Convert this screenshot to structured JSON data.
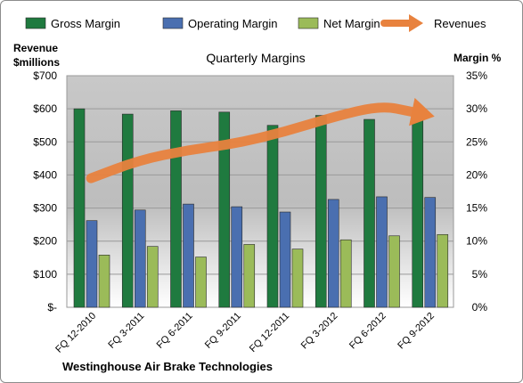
{
  "chart_data": {
    "type": "bar",
    "title": "Quarterly Margins",
    "footer": "Westinghouse Air Brake Technologies",
    "categories": [
      "FQ 12-2010",
      "FQ 3-2011",
      "FQ 6-2011",
      "FQ 9-2011",
      "FQ 12-2011",
      "FQ 3-2012",
      "FQ 6-2012",
      "FQ 9-2012"
    ],
    "left_axis": {
      "label_line1": "Revenue",
      "label_line2": "$millions",
      "ticks": [
        "$-",
        "$100",
        "$200",
        "$300",
        "$400",
        "$500",
        "$600",
        "$700"
      ],
      "ylim": [
        0,
        700
      ]
    },
    "right_axis": {
      "label": "Margin %",
      "ticks": [
        "0%",
        "5%",
        "10%",
        "15%",
        "20%",
        "25%",
        "30%",
        "35%"
      ],
      "ylim": [
        0,
        35
      ]
    },
    "legend_position": "top",
    "series": [
      {
        "name": "Gross Margin",
        "kind": "bar",
        "axis": "right",
        "color": "#1f7a3f",
        "values": [
          30.0,
          29.2,
          29.7,
          29.5,
          27.5,
          29.0,
          28.4,
          29.2
        ]
      },
      {
        "name": "Operating Margin",
        "kind": "bar",
        "axis": "right",
        "color": "#4a6fb0",
        "values": [
          13.1,
          14.7,
          15.6,
          15.2,
          14.4,
          16.3,
          16.7,
          16.6
        ]
      },
      {
        "name": "Net Margin",
        "kind": "bar",
        "axis": "right",
        "color": "#9bbb59",
        "values": [
          7.9,
          9.2,
          7.6,
          9.5,
          8.8,
          10.2,
          10.8,
          11.0
        ]
      },
      {
        "name": "Revenues",
        "kind": "line-arrow",
        "axis": "left",
        "color": "#e8823e",
        "values": [
          390,
          445,
          475,
          495,
          530,
          575,
          610,
          580
        ]
      }
    ],
    "grid": true
  }
}
